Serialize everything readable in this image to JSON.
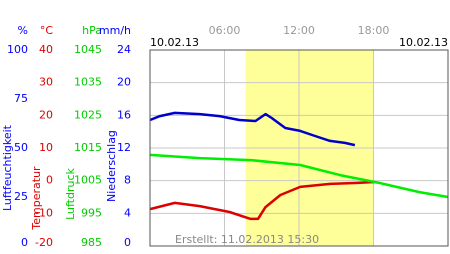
{
  "chart_data": {
    "type": "line",
    "date_left": "10.02.13",
    "date_right": "10.02.13",
    "created": "Erstellt: 11.02.2013 15:30",
    "xlim": [
      0,
      24
    ],
    "xticks": [
      {
        "value": 6,
        "label": "06:00"
      },
      {
        "value": 12,
        "label": "12:00"
      },
      {
        "value": 18,
        "label": "18:00"
      }
    ],
    "highlight_range": [
      7.7,
      18.0
    ],
    "highlight_color": "#ffff99",
    "grid": true,
    "y_axes": [
      {
        "unit": "%",
        "title": "Luftfeuchtigkeit",
        "color": "#0000ff",
        "ylim": [
          0,
          100
        ],
        "yticks": [
          100,
          75,
          50,
          25,
          0
        ]
      },
      {
        "unit": "°C",
        "title": "Temperatur",
        "color": "#dd0000",
        "ylim": [
          -20,
          40
        ],
        "yticks": [
          40,
          30,
          20,
          10,
          0,
          -10,
          -20
        ]
      },
      {
        "unit": "hPa",
        "title": "Luftdruck",
        "color": "#00cc00",
        "ylim": [
          985,
          1045
        ],
        "yticks": [
          1045,
          1035,
          1025,
          1015,
          1005,
          995,
          985
        ]
      },
      {
        "unit": "mm/h",
        "title": "Niederschlag",
        "color": "#0000ff",
        "ylim": [
          0,
          24
        ],
        "yticks": [
          24,
          20,
          16,
          12,
          8,
          4,
          0
        ]
      }
    ],
    "series": [
      {
        "color": "#0000cc",
        "axis": 0,
        "x": [
          0,
          0.8,
          2.0,
          4.0,
          5.6,
          7.2,
          8.5,
          9.3,
          9.8,
          10.9,
          12.1,
          13.3,
          14.5,
          15.7,
          16.5
        ],
        "values": [
          64.3,
          66.3,
          67.9,
          67.3,
          66.3,
          64.3,
          63.8,
          67.3,
          65.3,
          60.2,
          58.7,
          56.1,
          53.6,
          52.6,
          51.5
        ]
      },
      {
        "color": "#dd0000",
        "axis": 1,
        "x": [
          0,
          2.0,
          4.0,
          6.4,
          8.1,
          8.7,
          9.3,
          10.5,
          12.1,
          14.5,
          16.5,
          18.1
        ],
        "values": [
          -8.7,
          -6.8,
          -7.8,
          -9.6,
          -11.7,
          -11.7,
          -8.1,
          -4.4,
          -1.9,
          -1.0,
          -0.7,
          -0.4
        ]
      },
      {
        "color": "#00ee00",
        "axis": 2,
        "x": [
          0,
          4.0,
          8.1,
          12.1,
          15.3,
          18.5,
          21.7,
          24
        ],
        "values": [
          1012.9,
          1011.9,
          1011.3,
          1009.8,
          1006.7,
          1004.3,
          1001.5,
          1000.0
        ]
      }
    ]
  }
}
